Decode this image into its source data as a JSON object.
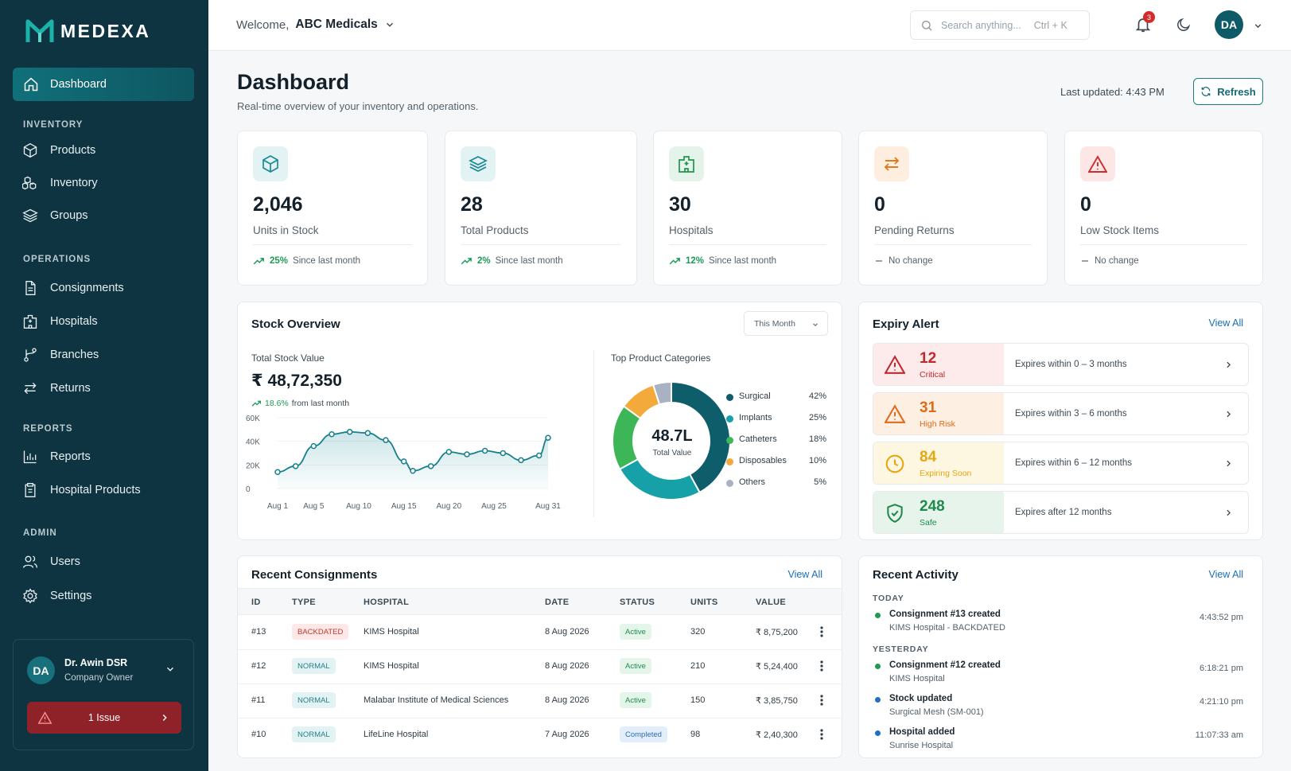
{
  "app": {
    "name": "MEDEXA"
  },
  "sidebar": {
    "active": "Dashboard",
    "sections": [
      {
        "title": "INVENTORY",
        "items": [
          "Products",
          "Inventory",
          "Groups"
        ]
      },
      {
        "title": "OPERATIONS",
        "items": [
          "Consignments",
          "Hospitals",
          "Branches",
          "Returns"
        ]
      },
      {
        "title": "REPORTS",
        "items": [
          "Reports",
          "Hospital Products"
        ]
      },
      {
        "title": "ADMIN",
        "items": [
          "Users",
          "Settings"
        ]
      }
    ],
    "user": {
      "initials": "DA",
      "name": "Dr. Awin DSR",
      "role": "Company Owner"
    },
    "issue_label": "1 Issue"
  },
  "header": {
    "welcome": "Welcome,",
    "org": "ABC Medicals",
    "search_placeholder": "Search anything...",
    "search_shortcut": "Ctrl + K",
    "notifications": "3",
    "avatar": "DA"
  },
  "page": {
    "title": "Dashboard",
    "subtitle": "Real-time overview of your inventory and operations.",
    "last_updated": "Last updated: 4:43 PM",
    "refresh": "Refresh"
  },
  "stats": [
    {
      "value": "2,046",
      "label": "Units in Stock",
      "pct": "25%",
      "note": "Since last month",
      "trend": "up",
      "icon": "box-icon",
      "color": "#1a8a96",
      "bg": "#e3f3f4"
    },
    {
      "value": "28",
      "label": "Total Products",
      "pct": "2%",
      "note": "Since last month",
      "trend": "up",
      "icon": "layers-icon",
      "color": "#1a8a96",
      "bg": "#e3f3f4"
    },
    {
      "value": "30",
      "label": "Hospitals",
      "pct": "12%",
      "note": "Since last month",
      "trend": "up",
      "icon": "hospital-icon",
      "color": "#22944f",
      "bg": "#e5f4ea"
    },
    {
      "value": "0",
      "label": "Pending Returns",
      "pct": "",
      "note": "No change",
      "trend": "flat",
      "icon": "swap-icon",
      "color": "#e07a1f",
      "bg": "#fdeee0"
    },
    {
      "value": "0",
      "label": "Low Stock Items",
      "pct": "",
      "note": "No change",
      "trend": "flat",
      "icon": "warning-icon",
      "color": "#d12b2b",
      "bg": "#fde6e6"
    }
  ],
  "stock_overview": {
    "title": "Stock Overview",
    "period": "This Month",
    "total_label": "Total Stock Value",
    "total_value": "₹ 48,72,350",
    "growth_pct": "18.6%",
    "growth_note": "from last month",
    "categories_title": "Top Product Categories",
    "donut_center": "48.7L",
    "donut_center_label": "Total Value"
  },
  "chart_data": [
    {
      "type": "area",
      "x_ticks": [
        "Aug 1",
        "Aug 5",
        "Aug 10",
        "Aug 15",
        "Aug 20",
        "Aug 25",
        "Aug 31"
      ],
      "y_ticks": [
        "60K",
        "40K",
        "20K",
        "0"
      ],
      "ylim": [
        0,
        60000
      ],
      "x": [
        1,
        3,
        5,
        7,
        9,
        11,
        13,
        15,
        16,
        18,
        20,
        22,
        24,
        26,
        28,
        30,
        31
      ],
      "y": [
        14000,
        19000,
        36000,
        46000,
        48000,
        47000,
        41000,
        23000,
        15000,
        19000,
        31000,
        29000,
        32000,
        30000,
        24000,
        28000,
        43000
      ],
      "grid": true
    },
    {
      "type": "pie",
      "labels": [
        "Surgical",
        "Implants",
        "Catheters",
        "Disposables",
        "Others"
      ],
      "values": [
        42,
        25,
        18,
        10,
        5
      ],
      "display": [
        "42%",
        "25%",
        "18%",
        "10%",
        "5%"
      ],
      "colors": [
        "#0e5d6b",
        "#16a0a7",
        "#3cb657",
        "#f4a93b",
        "#a9b2c3"
      ]
    }
  ],
  "expiry": {
    "title": "Expiry Alert",
    "view_all": "View All",
    "rows": [
      {
        "count": "12",
        "level": "Critical",
        "desc": "Expires within 0 – 3 months",
        "color": "#c0282d",
        "bg": "#fdeaea",
        "icon": "warning-icon"
      },
      {
        "count": "31",
        "level": "High Risk",
        "desc": "Expires within 3 – 6 months",
        "color": "#e06a1b",
        "bg": "#fdf0e3",
        "icon": "warning-icon"
      },
      {
        "count": "84",
        "level": "Expiring Soon",
        "desc": "Expires within 6 – 12 months",
        "color": "#e5a613",
        "bg": "#fdf6e1",
        "icon": "clock-icon"
      },
      {
        "count": "248",
        "level": "Safe",
        "desc": "Expires after 12 months",
        "color": "#1f8a4c",
        "bg": "#e6f4eb",
        "icon": "shield-check-icon"
      }
    ]
  },
  "consignments": {
    "title": "Recent Consignments",
    "view_all": "View All",
    "columns": [
      "ID",
      "TYPE",
      "HOSPITAL",
      "DATE",
      "STATUS",
      "UNITS",
      "VALUE"
    ],
    "rows": [
      {
        "id": "#13",
        "type": "BACKDATED",
        "hospital": "KIMS Hospital",
        "date": "8 Aug 2026",
        "status": "Active",
        "units": "320",
        "value": "₹ 8,75,200"
      },
      {
        "id": "#12",
        "type": "NORMAL",
        "hospital": "KIMS Hospital",
        "date": "8 Aug 2026",
        "status": "Active",
        "units": "210",
        "value": "₹ 5,24,400"
      },
      {
        "id": "#11",
        "type": "NORMAL",
        "hospital": "Malabar Institute of Medical Sciences",
        "date": "8 Aug 2026",
        "status": "Active",
        "units": "150",
        "value": "₹ 3,85,750"
      },
      {
        "id": "#10",
        "type": "NORMAL",
        "hospital": "LifeLine Hospital",
        "date": "7 Aug 2026",
        "status": "Completed",
        "units": "98",
        "value": "₹ 2,40,300"
      }
    ]
  },
  "activity": {
    "title": "Recent Activity",
    "view_all": "View All",
    "today_label": "TODAY",
    "yesterday_label": "YESTERDAY",
    "items": [
      {
        "title": "Consignment #13 created",
        "sub": "KIMS Hospital - BACKDATED",
        "time": "4:43:52 pm",
        "color": "#1f9a4e"
      },
      {
        "title": "Consignment #12 created",
        "sub": "KIMS Hospital",
        "time": "6:18:21 pm",
        "color": "#1f9a4e"
      },
      {
        "title": "Stock updated",
        "sub": "Surgical Mesh (SM-001)",
        "time": "4:21:10 pm",
        "color": "#1f6fc2"
      },
      {
        "title": "Hospital added",
        "sub": "Sunrise Hospital",
        "time": "11:07:33 am",
        "color": "#1f6fc2"
      }
    ]
  }
}
